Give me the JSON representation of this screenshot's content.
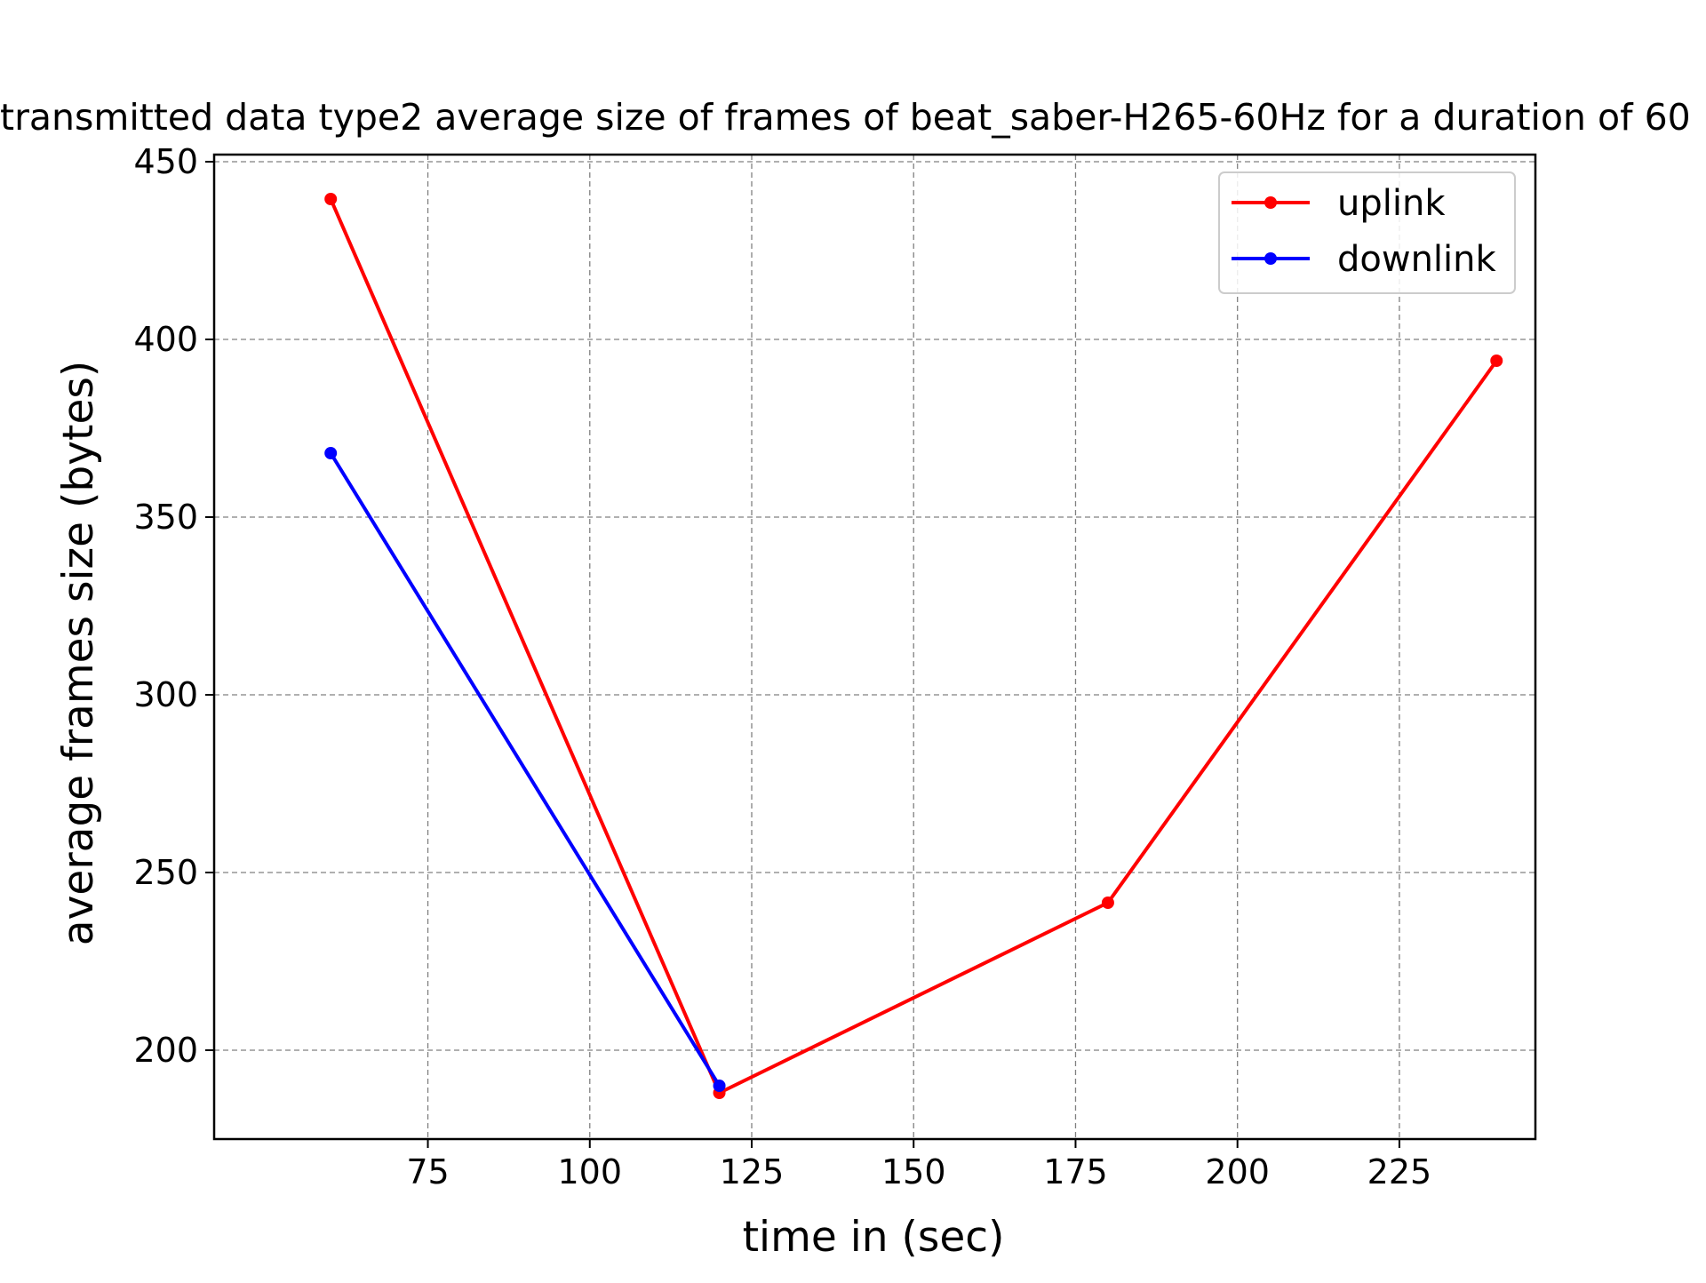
{
  "chart_data": {
    "type": "line",
    "title": "transmitted data type2 average size of frames of beat_saber-H265-60Hz for a duration of 60",
    "xlabel": "time in (sec)",
    "ylabel": "average frames size (bytes)",
    "xlim": [
      42,
      246
    ],
    "ylim": [
      175,
      452
    ],
    "xticks": [
      75,
      100,
      125,
      150,
      175,
      200,
      225
    ],
    "yticks": [
      200,
      250,
      300,
      350,
      400,
      450
    ],
    "grid": true,
    "legend_position": "top-right",
    "series": [
      {
        "name": "uplink",
        "color": "#ff0000",
        "x": [
          60,
          120,
          180,
          240
        ],
        "y": [
          439.5,
          188.0,
          241.5,
          394.0
        ]
      },
      {
        "name": "downlink",
        "color": "#0000ff",
        "x": [
          60,
          120
        ],
        "y": [
          368.0,
          190.0
        ]
      }
    ]
  }
}
